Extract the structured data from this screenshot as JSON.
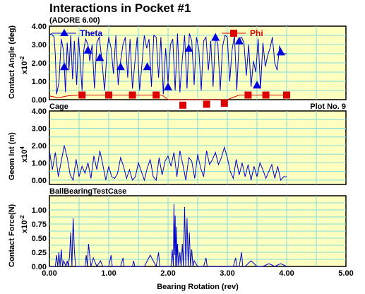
{
  "page": {
    "title": "Interactions in Pocket #1",
    "subtitle": "(ADORE 6.00)"
  },
  "colors": {
    "panel_bg": "#ffffc0",
    "grid": "#7fdcdc",
    "theta": "#0000cc",
    "phi": "#dd0000"
  },
  "chart_data": [
    {
      "type": "line",
      "ylabel": "Contact Angle (deg)",
      "scale_label": "x10",
      "scale_exp": "-2",
      "ylim": [
        0,
        4
      ],
      "yticks": [
        "0.00",
        "1.00",
        "2.00",
        "3.00",
        "4.00"
      ],
      "legend": [
        {
          "name": "Theta",
          "marker": "triangle"
        },
        {
          "name": "Phi",
          "marker": "square"
        }
      ],
      "series": [
        {
          "name": "Theta",
          "x": [
            0.0,
            0.03,
            0.08,
            0.1,
            0.12,
            0.16,
            0.2,
            0.24,
            0.27,
            0.3,
            0.33,
            0.36,
            0.39,
            0.42,
            0.46,
            0.49,
            0.52,
            0.55,
            0.58,
            0.61,
            0.65,
            0.68,
            0.72,
            0.76,
            0.8,
            0.84,
            0.88,
            0.93,
            0.97,
            1.0,
            1.04,
            1.08,
            1.12,
            1.16,
            1.2,
            1.24,
            1.28,
            1.32,
            1.36,
            1.4,
            1.44,
            1.48,
            1.52,
            1.56,
            1.6,
            1.64,
            1.68,
            1.72,
            1.76,
            1.8,
            1.84,
            1.88,
            1.92,
            1.96,
            2.0,
            2.04,
            2.08,
            2.12,
            2.16,
            2.2,
            2.24,
            2.28,
            2.32,
            2.36,
            2.4,
            2.44,
            2.48,
            2.52,
            2.56,
            2.6,
            2.64,
            2.68,
            2.72,
            2.76,
            2.8,
            2.84,
            2.88,
            2.92,
            2.96,
            3.0,
            3.04,
            3.08,
            3.12,
            3.16,
            3.2,
            3.24,
            3.28,
            3.32,
            3.36,
            3.4,
            3.44,
            3.48,
            3.52,
            3.56,
            3.6,
            3.64,
            3.68,
            3.72,
            3.76,
            3.8,
            3.84,
            3.88,
            3.92,
            3.96,
            4.0
          ],
          "values": [
            3.5,
            3.6,
            3.4,
            2.4,
            0.3,
            0.9,
            3.3,
            2.6,
            0.4,
            3.1,
            1.6,
            3.5,
            1.1,
            3.2,
            0.8,
            3.4,
            2.1,
            0.5,
            2.7,
            3.3,
            3.0,
            2.1,
            3.0,
            0.6,
            3.1,
            3.4,
            2.3,
            0.5,
            2.6,
            3.4,
            2.8,
            1.4,
            3.5,
            0.8,
            2.1,
            3.0,
            3.4,
            1.2,
            3.3,
            0.6,
            2.0,
            3.4,
            0.5,
            1.9,
            3.5,
            2.8,
            3.3,
            0.7,
            3.5,
            3.4,
            1.2,
            3.4,
            0.3,
            2.8,
            0.9,
            3.0,
            3.3,
            0.5,
            3.6,
            0.4,
            2.2,
            3.5,
            0.6,
            3.6,
            3.2,
            0.8,
            3.4,
            2.7,
            0.5,
            3.2,
            3.4,
            1.6,
            3.2,
            0.7,
            3.4,
            3.0,
            0.5,
            2.9,
            3.5,
            3.4,
            1.0,
            2.7,
            3.5,
            0.5,
            3.3,
            3.4,
            3.1,
            1.3,
            3.0,
            0.7,
            2.1,
            1.5,
            3.3,
            0.6,
            3.1,
            1.8,
            2.4,
            2.8,
            3.4,
            2.0,
            1.6,
            2.9,
            2.6,
            2.5,
            2.5
          ],
          "markers_x": [
            0.25,
            0.65,
            0.85,
            1.2,
            1.65,
            2.0,
            2.35,
            2.8,
            3.2,
            3.5,
            3.9
          ],
          "markers_y": [
            1.8,
            2.7,
            2.3,
            1.8,
            1.8,
            0.7,
            2.8,
            3.4,
            3.2,
            0.8,
            2.6
          ]
        },
        {
          "name": "Phi",
          "x": [
            0.0,
            0.15,
            0.3,
            0.5,
            1.0,
            1.5,
            1.9,
            2.0,
            2.1,
            2.3,
            2.5,
            2.7,
            2.8,
            2.9,
            3.0,
            3.2,
            3.5,
            4.0
          ],
          "values": [
            0.2,
            0.1,
            0.2,
            0.25,
            0.25,
            0.25,
            0.25,
            -0.05,
            -0.3,
            -0.3,
            -0.25,
            -0.25,
            -0.05,
            -0.2,
            -0.2,
            0.25,
            0.25,
            0.25
          ],
          "markers_x": [
            0.55,
            1.0,
            1.4,
            1.8,
            2.25,
            2.65,
            2.95,
            3.35,
            3.65,
            4.0
          ],
          "markers_y": [
            0.25,
            0.25,
            0.25,
            0.25,
            -0.3,
            -0.25,
            -0.2,
            0.25,
            0.25,
            0.25
          ]
        }
      ]
    },
    {
      "type": "line",
      "panel_title": "Cage",
      "panel_right": "Plot No. 9",
      "ylabel": "Geom Int (m)",
      "scale_label": "x10",
      "scale_exp": "4",
      "ylim": [
        -0.25,
        4
      ],
      "yticks": [
        "0.00",
        "1.00",
        "2.00",
        "3.00",
        "4.00"
      ],
      "series": [
        {
          "name": "Geom Int",
          "x": [
            0.0,
            0.05,
            0.1,
            0.15,
            0.2,
            0.25,
            0.3,
            0.35,
            0.4,
            0.45,
            0.5,
            0.55,
            0.6,
            0.65,
            0.7,
            0.75,
            0.8,
            0.85,
            0.9,
            0.95,
            1.0,
            1.05,
            1.1,
            1.15,
            1.2,
            1.25,
            1.3,
            1.35,
            1.4,
            1.45,
            1.5,
            1.55,
            1.6,
            1.65,
            1.7,
            1.75,
            1.8,
            1.85,
            1.9,
            1.95,
            2.0,
            2.05,
            2.1,
            2.15,
            2.2,
            2.25,
            2.3,
            2.35,
            2.4,
            2.45,
            2.5,
            2.55,
            2.6,
            2.65,
            2.7,
            2.75,
            2.8,
            2.85,
            2.9,
            2.95,
            3.0,
            3.05,
            3.1,
            3.15,
            3.2,
            3.25,
            3.3,
            3.35,
            3.4,
            3.45,
            3.5,
            3.55,
            3.6,
            3.65,
            3.7,
            3.75,
            3.8,
            3.85,
            3.9,
            3.95,
            4.0
          ],
          "values": [
            1.7,
            0.6,
            1.6,
            0.2,
            1.1,
            2.0,
            1.3,
            0.3,
            0.0,
            1.2,
            0.2,
            0.8,
            0.4,
            1.0,
            0.1,
            1.4,
            0.6,
            1.7,
            0.9,
            0.0,
            0.8,
            0.2,
            0.1,
            0.4,
            1.3,
            0.8,
            0.1,
            0.6,
            0.0,
            0.2,
            1.0,
            0.5,
            0.0,
            0.7,
            1.2,
            0.2,
            0.0,
            1.3,
            0.3,
            1.1,
            1.4,
            0.8,
            1.6,
            0.2,
            1.7,
            0.9,
            0.0,
            1.3,
            1.1,
            0.1,
            1.5,
            0.7,
            0.2,
            1.7,
            0.9,
            1.2,
            1.6,
            0.9,
            1.3,
            1.9,
            1.3,
            0.5,
            0.1,
            1.2,
            0.3,
            1.0,
            0.2,
            0.9,
            0.0,
            0.8,
            0.2,
            1.0,
            0.6,
            0.1,
            0.5,
            0.9,
            0.1,
            0.8,
            0.0,
            0.2,
            0.2
          ]
        }
      ]
    },
    {
      "type": "line",
      "panel_title": "BallBearingTestCase",
      "ylabel": "Contact Force(N)",
      "scale_label": "x10",
      "scale_exp": "-2",
      "xlabel": "Bearing Rotation (rev)",
      "ylim": [
        0,
        1.25
      ],
      "xlim": [
        0,
        5
      ],
      "yticks": [
        "0.00",
        "0.25",
        "0.50",
        "0.75",
        "1.00"
      ],
      "xticks": [
        "0.00",
        "1.00",
        "2.00",
        "3.00",
        "4.00",
        "5.00"
      ],
      "series": [
        {
          "name": "Contact Force",
          "x": [
            0.0,
            0.1,
            0.12,
            0.14,
            0.16,
            0.18,
            0.2,
            0.22,
            0.24,
            0.28,
            0.3,
            0.32,
            0.34,
            0.36,
            0.38,
            0.4,
            0.42,
            0.44,
            0.5,
            0.55,
            0.6,
            0.62,
            0.64,
            0.66,
            0.7,
            0.74,
            0.8,
            0.86,
            0.9,
            1.0,
            1.04,
            1.06,
            1.1,
            1.2,
            1.24,
            1.26,
            1.3,
            1.4,
            1.42,
            1.44,
            1.5,
            1.6,
            1.7,
            1.8,
            1.84,
            1.86,
            1.9,
            2.0,
            2.05,
            2.07,
            2.09,
            2.1,
            2.11,
            2.12,
            2.13,
            2.14,
            2.15,
            2.16,
            2.18,
            2.2,
            2.22,
            2.24,
            2.26,
            2.28,
            2.3,
            2.32,
            2.34,
            2.36,
            2.38,
            2.4,
            2.42,
            2.44,
            2.5,
            2.6,
            2.64,
            2.66,
            2.7,
            2.8,
            2.9,
            3.0,
            3.1,
            3.14,
            3.16,
            3.2,
            3.24,
            3.26,
            3.3,
            3.4,
            3.5,
            3.6,
            3.7,
            3.8,
            3.9,
            4.0
          ],
          "values": [
            0.0,
            0.0,
            0.2,
            0.0,
            0.25,
            0.0,
            0.3,
            0.0,
            0.1,
            0.0,
            0.1,
            0.0,
            0.2,
            0.6,
            0.0,
            0.85,
            0.3,
            0.0,
            0.0,
            0.0,
            0.0,
            0.2,
            0.0,
            0.4,
            0.0,
            0.15,
            0.0,
            0.1,
            0.0,
            0.0,
            0.2,
            0.0,
            0.0,
            0.0,
            0.15,
            0.0,
            0.0,
            0.0,
            0.1,
            0.0,
            0.0,
            0.0,
            0.2,
            0.0,
            0.25,
            0.0,
            0.0,
            0.0,
            0.0,
            0.3,
            0.0,
            1.1,
            0.2,
            0.9,
            0.0,
            0.7,
            0.0,
            0.4,
            0.0,
            0.25,
            0.0,
            0.4,
            0.0,
            1.05,
            0.0,
            0.85,
            0.0,
            0.6,
            0.0,
            0.3,
            0.0,
            0.1,
            0.0,
            0.0,
            0.15,
            0.0,
            0.0,
            0.0,
            0.0,
            0.0,
            0.0,
            0.15,
            0.0,
            0.0,
            0.25,
            0.0,
            0.0,
            0.1,
            0.0,
            0.0,
            0.05,
            0.0,
            0.05,
            0.0
          ]
        }
      ]
    }
  ]
}
